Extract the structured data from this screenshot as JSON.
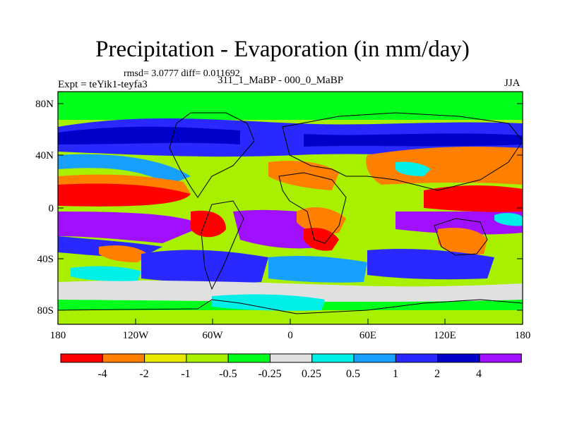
{
  "header": {
    "title": "Precipitation - Evaporation (in mm/day)",
    "stats": "rmsd= 3.0777 diff= 0.011692",
    "experiment": "Expt = teYik1-teyfa3",
    "period": "311_1_MaBP - 000_0_MaBP",
    "season": "JJA"
  },
  "axes": {
    "lat_labels": [
      "80N",
      "40N",
      "0",
      "40S",
      "80S"
    ],
    "lon_labels": [
      "180",
      "120W",
      "60W",
      "0",
      "60E",
      "120E",
      "180"
    ]
  },
  "colorbar": {
    "labels": [
      "-4",
      "-2",
      "-1",
      "-0.5",
      "-0.25",
      "0.25",
      "0.5",
      "1",
      "2",
      "4"
    ],
    "colors": [
      "#ff0000",
      "#ff7f00",
      "#e8e800",
      "#a8f000",
      "#00ff1a",
      "#e0e0e0",
      "#00f0e8",
      "#18a0ff",
      "#2828ff",
      "#0000c8",
      "#a010ff"
    ]
  }
}
